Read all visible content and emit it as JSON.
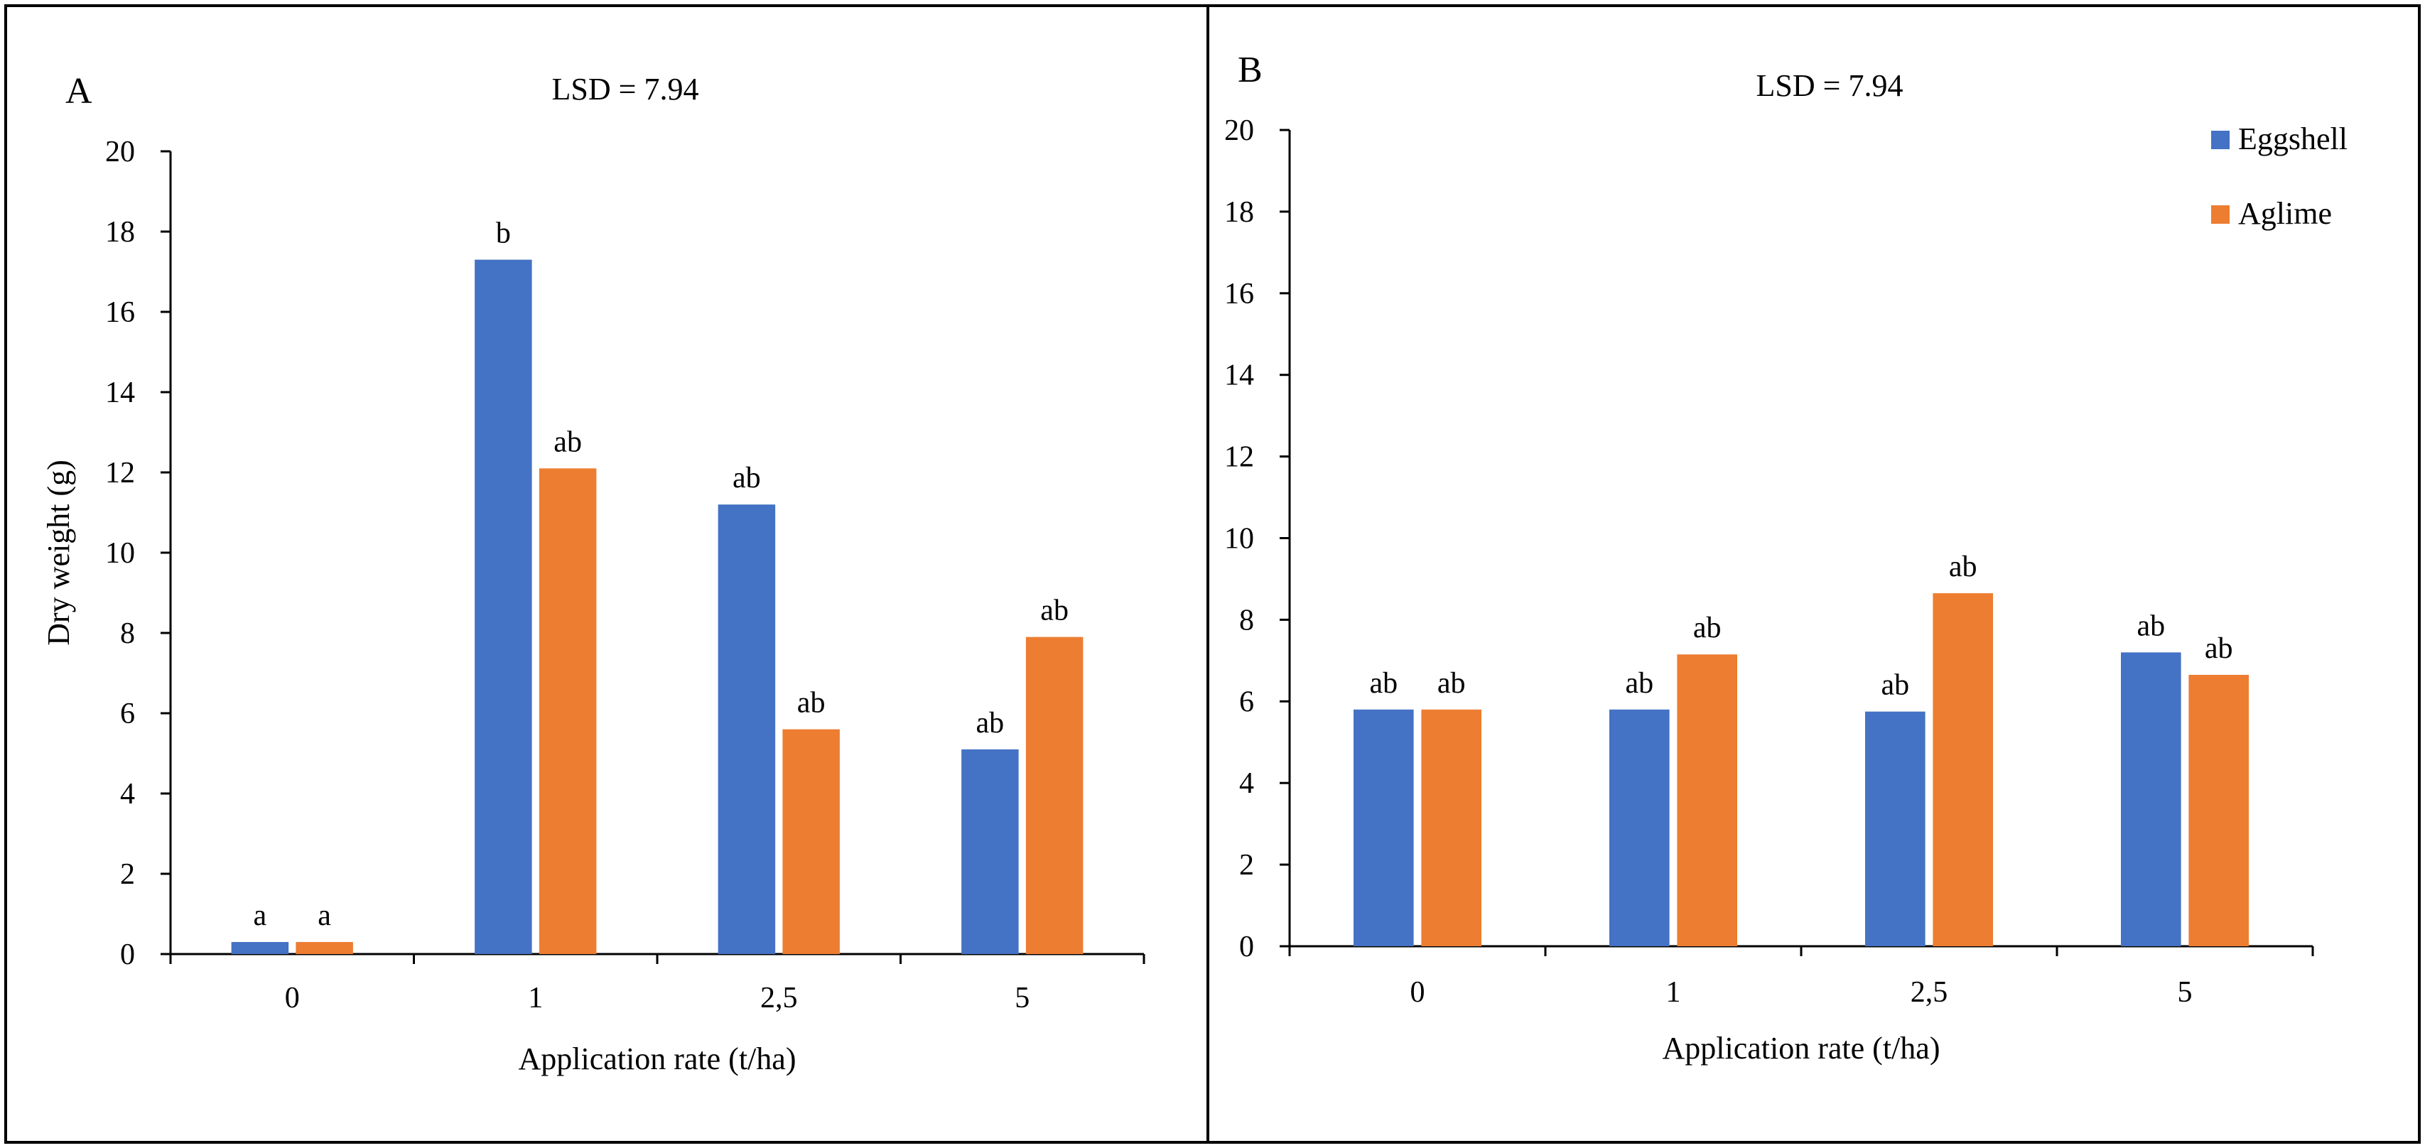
{
  "chart_data": [
    {
      "type": "bar",
      "panel": "A",
      "annotation": "LSD = 7.94",
      "xlabel": "Application rate (t/ha)",
      "ylabel": "Dry weight (g)",
      "ylim": [
        0,
        20
      ],
      "yticks": [
        "0",
        "2",
        "4",
        "6",
        "8",
        "10",
        "12",
        "14",
        "16",
        "18",
        "20"
      ],
      "categories": [
        "0",
        "1",
        "2,5",
        "5"
      ],
      "series": [
        {
          "name": "Eggshell",
          "color": "#4472C4",
          "values": [
            0.3,
            17.3,
            11.2,
            5.1
          ],
          "labels": [
            "a",
            "b",
            "ab",
            "ab"
          ]
        },
        {
          "name": "Aglime",
          "color": "#ED7D31",
          "values": [
            0.3,
            12.1,
            5.6,
            7.9
          ],
          "labels": [
            "a",
            "ab",
            "ab",
            "ab"
          ]
        }
      ],
      "legend": "none"
    },
    {
      "type": "bar",
      "panel": "B",
      "annotation": "LSD = 7.94",
      "xlabel": "Application rate (t/ha)",
      "ylabel": "",
      "ylim": [
        0,
        20
      ],
      "yticks": [
        "0",
        "2",
        "4",
        "6",
        "8",
        "10",
        "12",
        "14",
        "16",
        "18",
        "20"
      ],
      "categories": [
        "0",
        "1",
        "2,5",
        "5"
      ],
      "series": [
        {
          "name": "Eggshell",
          "color": "#4472C4",
          "values": [
            5.8,
            5.8,
            5.75,
            7.2
          ],
          "labels": [
            "ab",
            "ab",
            "ab",
            "ab"
          ]
        },
        {
          "name": "Aglime",
          "color": "#ED7D31",
          "values": [
            5.8,
            7.15,
            8.65,
            6.65
          ],
          "labels": [
            "ab",
            "ab",
            "ab",
            "ab"
          ]
        }
      ],
      "legend": "top-right"
    }
  ]
}
